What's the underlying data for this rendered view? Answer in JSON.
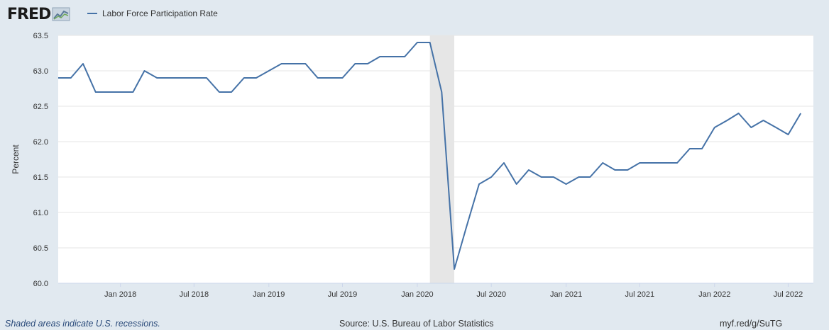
{
  "header": {
    "logo_text": "FRED",
    "logo_icon": "fred-chart-icon"
  },
  "footer": {
    "note": "Shaded areas indicate U.S. recessions.",
    "source": "Source: U.S. Bureau of Labor Statistics",
    "link": "myf.red/g/SuTG"
  },
  "colors": {
    "background": "#e1e9f0",
    "plot_background": "#ffffff",
    "series": "#4572a7",
    "recession": "#e6e6e6",
    "grid": "#e6e6e6"
  },
  "chart_data": {
    "type": "line",
    "title": "",
    "xlabel": "",
    "ylabel": "Percent",
    "legend_position": "top-left",
    "grid": true,
    "ylim": [
      60.0,
      63.5
    ],
    "xlim": [
      "2017-08-01",
      "2022-09-01"
    ],
    "yticks": [
      60.0,
      60.5,
      61.0,
      61.5,
      62.0,
      62.5,
      63.0,
      63.5
    ],
    "yticklabels": [
      "60.0",
      "60.5",
      "61.0",
      "61.5",
      "62.0",
      "62.5",
      "63.0",
      "63.5"
    ],
    "xticks": [
      "2018-01-01",
      "2018-07-01",
      "2019-01-01",
      "2019-07-01",
      "2020-01-01",
      "2020-07-01",
      "2021-01-01",
      "2021-07-01",
      "2022-01-01",
      "2022-07-01"
    ],
    "xticklabels": [
      "Jan 2018",
      "Jul 2018",
      "Jan 2019",
      "Jul 2019",
      "Jan 2020",
      "Jul 2020",
      "Jan 2021",
      "Jul 2021",
      "Jan 2022",
      "Jul 2022"
    ],
    "recessions": [
      {
        "start": "2020-02-01",
        "end": "2020-04-01"
      }
    ],
    "series": [
      {
        "name": "Labor Force Participation Rate",
        "x": [
          "2017-08-01",
          "2017-09-01",
          "2017-10-01",
          "2017-11-01",
          "2017-12-01",
          "2018-01-01",
          "2018-02-01",
          "2018-03-01",
          "2018-04-01",
          "2018-05-01",
          "2018-06-01",
          "2018-07-01",
          "2018-08-01",
          "2018-09-01",
          "2018-10-01",
          "2018-11-01",
          "2018-12-01",
          "2019-01-01",
          "2019-02-01",
          "2019-03-01",
          "2019-04-01",
          "2019-05-01",
          "2019-06-01",
          "2019-07-01",
          "2019-08-01",
          "2019-09-01",
          "2019-10-01",
          "2019-11-01",
          "2019-12-01",
          "2020-01-01",
          "2020-02-01",
          "2020-03-01",
          "2020-04-01",
          "2020-05-01",
          "2020-06-01",
          "2020-07-01",
          "2020-08-01",
          "2020-09-01",
          "2020-10-01",
          "2020-11-01",
          "2020-12-01",
          "2021-01-01",
          "2021-02-01",
          "2021-03-01",
          "2021-04-01",
          "2021-05-01",
          "2021-06-01",
          "2021-07-01",
          "2021-08-01",
          "2021-09-01",
          "2021-10-01",
          "2021-11-01",
          "2021-12-01",
          "2022-01-01",
          "2022-02-01",
          "2022-03-01",
          "2022-04-01",
          "2022-05-01",
          "2022-06-01",
          "2022-07-01",
          "2022-08-01"
        ],
        "values": [
          62.9,
          62.9,
          63.1,
          62.7,
          62.7,
          62.7,
          62.7,
          63.0,
          62.9,
          62.9,
          62.9,
          62.9,
          62.9,
          62.7,
          62.7,
          62.9,
          62.9,
          63.0,
          63.1,
          63.1,
          63.1,
          62.9,
          62.9,
          62.9,
          63.1,
          63.1,
          63.2,
          63.2,
          63.2,
          63.4,
          63.4,
          62.7,
          60.2,
          60.8,
          61.4,
          61.5,
          61.7,
          61.4,
          61.6,
          61.5,
          61.5,
          61.4,
          61.5,
          61.5,
          61.7,
          61.6,
          61.6,
          61.7,
          61.7,
          61.7,
          61.7,
          61.9,
          61.9,
          62.2,
          62.3,
          62.4,
          62.2,
          62.3,
          62.2,
          62.1,
          62.4
        ]
      }
    ]
  }
}
